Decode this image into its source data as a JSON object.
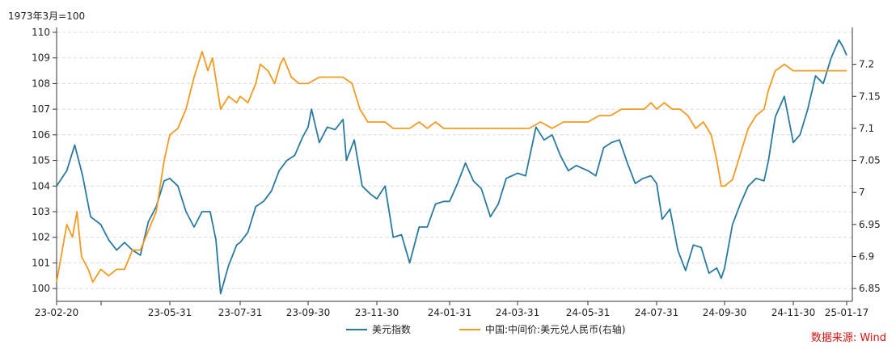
{
  "chart_data": {
    "type": "line",
    "unit_label": "1973年3月=100",
    "source": "数据来源: Wind",
    "x_ticks": [
      "23-02-20",
      "23-05-31",
      "23-07-31",
      "23-09-30",
      "23-11-30",
      "24-01-31",
      "24-03-31",
      "24-05-31",
      "24-07-31",
      "24-09-30",
      "24-11-30",
      "25-01-17"
    ],
    "left_axis": {
      "ylim": [
        99.5,
        110
      ],
      "ticks": [
        100,
        101,
        102,
        103,
        104,
        105,
        106,
        107,
        108,
        109,
        110
      ]
    },
    "right_axis": {
      "ylim": [
        6.83,
        7.25
      ],
      "ticks": [
        6.85,
        6.9,
        6.95,
        7,
        7.05,
        7.1,
        7.15,
        7.2
      ]
    },
    "grid": "horizontal-dashed",
    "legend_position": "bottom-center",
    "series": [
      {
        "name": "美元指数",
        "axis": "left",
        "color": "#2a7aa0",
        "points": [
          [
            "2023-02-20",
            104.0
          ],
          [
            "2023-03-01",
            104.6
          ],
          [
            "2023-03-08",
            105.6
          ],
          [
            "2023-03-15",
            104.4
          ],
          [
            "2023-03-22",
            102.8
          ],
          [
            "2023-03-31",
            102.5
          ],
          [
            "2023-04-07",
            101.9
          ],
          [
            "2023-04-14",
            101.5
          ],
          [
            "2023-04-21",
            101.8
          ],
          [
            "2023-04-28",
            101.5
          ],
          [
            "2023-05-05",
            101.3
          ],
          [
            "2023-05-12",
            102.6
          ],
          [
            "2023-05-19",
            103.2
          ],
          [
            "2023-05-26",
            104.2
          ],
          [
            "2023-05-31",
            104.3
          ],
          [
            "2023-06-07",
            104.0
          ],
          [
            "2023-06-14",
            103.0
          ],
          [
            "2023-06-21",
            102.4
          ],
          [
            "2023-06-28",
            103.0
          ],
          [
            "2023-07-05",
            103.0
          ],
          [
            "2023-07-10",
            101.9
          ],
          [
            "2023-07-14",
            99.8
          ],
          [
            "2023-07-21",
            100.9
          ],
          [
            "2023-07-28",
            101.7
          ],
          [
            "2023-07-31",
            101.8
          ],
          [
            "2023-08-07",
            102.2
          ],
          [
            "2023-08-14",
            103.2
          ],
          [
            "2023-08-21",
            103.4
          ],
          [
            "2023-08-28",
            103.8
          ],
          [
            "2023-09-04",
            104.6
          ],
          [
            "2023-09-11",
            105.0
          ],
          [
            "2023-09-18",
            105.2
          ],
          [
            "2023-09-25",
            105.9
          ],
          [
            "2023-09-30",
            106.3
          ],
          [
            "2023-10-03",
            107.0
          ],
          [
            "2023-10-10",
            105.7
          ],
          [
            "2023-10-17",
            106.3
          ],
          [
            "2023-10-24",
            106.2
          ],
          [
            "2023-10-31",
            106.6
          ],
          [
            "2023-11-03",
            105.0
          ],
          [
            "2023-11-10",
            105.8
          ],
          [
            "2023-11-17",
            104.0
          ],
          [
            "2023-11-24",
            103.7
          ],
          [
            "2023-11-30",
            103.5
          ],
          [
            "2023-12-07",
            104.0
          ],
          [
            "2023-12-14",
            102.0
          ],
          [
            "2023-12-21",
            102.1
          ],
          [
            "2023-12-28",
            101.0
          ],
          [
            "2024-01-05",
            102.4
          ],
          [
            "2024-01-12",
            102.4
          ],
          [
            "2024-01-19",
            103.3
          ],
          [
            "2024-01-26",
            103.4
          ],
          [
            "2024-01-31",
            103.4
          ],
          [
            "2024-02-07",
            104.1
          ],
          [
            "2024-02-14",
            104.9
          ],
          [
            "2024-02-21",
            104.2
          ],
          [
            "2024-02-28",
            103.9
          ],
          [
            "2024-03-07",
            102.8
          ],
          [
            "2024-03-14",
            103.3
          ],
          [
            "2024-03-21",
            104.3
          ],
          [
            "2024-03-31",
            104.5
          ],
          [
            "2024-04-07",
            104.4
          ],
          [
            "2024-04-16",
            106.3
          ],
          [
            "2024-04-23",
            105.8
          ],
          [
            "2024-04-30",
            106.0
          ],
          [
            "2024-05-07",
            105.2
          ],
          [
            "2024-05-14",
            104.6
          ],
          [
            "2024-05-21",
            104.8
          ],
          [
            "2024-05-31",
            104.6
          ],
          [
            "2024-06-07",
            104.4
          ],
          [
            "2024-06-14",
            105.5
          ],
          [
            "2024-06-21",
            105.7
          ],
          [
            "2024-06-28",
            105.8
          ],
          [
            "2024-07-05",
            104.9
          ],
          [
            "2024-07-12",
            104.1
          ],
          [
            "2024-07-19",
            104.3
          ],
          [
            "2024-07-26",
            104.4
          ],
          [
            "2024-07-31",
            104.1
          ],
          [
            "2024-08-05",
            102.7
          ],
          [
            "2024-08-12",
            103.1
          ],
          [
            "2024-08-19",
            101.5
          ],
          [
            "2024-08-26",
            100.7
          ],
          [
            "2024-09-02",
            101.7
          ],
          [
            "2024-09-09",
            101.6
          ],
          [
            "2024-09-16",
            100.6
          ],
          [
            "2024-09-23",
            100.8
          ],
          [
            "2024-09-27",
            100.4
          ],
          [
            "2024-09-30",
            100.8
          ],
          [
            "2024-10-07",
            102.5
          ],
          [
            "2024-10-14",
            103.3
          ],
          [
            "2024-10-21",
            104.0
          ],
          [
            "2024-10-28",
            104.3
          ],
          [
            "2024-11-04",
            104.2
          ],
          [
            "2024-11-08",
            105.0
          ],
          [
            "2024-11-14",
            106.7
          ],
          [
            "2024-11-22",
            107.5
          ],
          [
            "2024-11-30",
            105.7
          ],
          [
            "2024-12-06",
            106.0
          ],
          [
            "2024-12-13",
            107.0
          ],
          [
            "2024-12-20",
            108.3
          ],
          [
            "2024-12-27",
            108.0
          ],
          [
            "2025-01-03",
            109.0
          ],
          [
            "2025-01-10",
            109.7
          ],
          [
            "2025-01-14",
            109.4
          ],
          [
            "2025-01-17",
            109.1
          ]
        ]
      },
      {
        "name": "中国:中间价:美元兑人民币(右轴)",
        "axis": "right",
        "color": "#f39a21",
        "points": [
          [
            "2023-02-20",
            6.86
          ],
          [
            "2023-02-24",
            6.9
          ],
          [
            "2023-03-01",
            6.95
          ],
          [
            "2023-03-06",
            6.93
          ],
          [
            "2023-03-10",
            6.97
          ],
          [
            "2023-03-14",
            6.9
          ],
          [
            "2023-03-20",
            6.88
          ],
          [
            "2023-03-24",
            6.86
          ],
          [
            "2023-03-31",
            6.88
          ],
          [
            "2023-04-07",
            6.87
          ],
          [
            "2023-04-14",
            6.88
          ],
          [
            "2023-04-21",
            6.88
          ],
          [
            "2023-04-28",
            6.91
          ],
          [
            "2023-05-05",
            6.91
          ],
          [
            "2023-05-12",
            6.94
          ],
          [
            "2023-05-19",
            6.97
          ],
          [
            "2023-05-26",
            7.05
          ],
          [
            "2023-05-31",
            7.09
          ],
          [
            "2023-06-07",
            7.1
          ],
          [
            "2023-06-14",
            7.13
          ],
          [
            "2023-06-21",
            7.18
          ],
          [
            "2023-06-28",
            7.22
          ],
          [
            "2023-07-03",
            7.19
          ],
          [
            "2023-07-07",
            7.21
          ],
          [
            "2023-07-14",
            7.13
          ],
          [
            "2023-07-21",
            7.15
          ],
          [
            "2023-07-28",
            7.14
          ],
          [
            "2023-07-31",
            7.15
          ],
          [
            "2023-08-07",
            7.14
          ],
          [
            "2023-08-14",
            7.17
          ],
          [
            "2023-08-18",
            7.2
          ],
          [
            "2023-08-25",
            7.19
          ],
          [
            "2023-08-31",
            7.17
          ],
          [
            "2023-09-05",
            7.2
          ],
          [
            "2023-09-08",
            7.21
          ],
          [
            "2023-09-15",
            7.18
          ],
          [
            "2023-09-22",
            7.17
          ],
          [
            "2023-09-30",
            7.17
          ],
          [
            "2023-10-10",
            7.18
          ],
          [
            "2023-10-20",
            7.18
          ],
          [
            "2023-10-31",
            7.18
          ],
          [
            "2023-11-08",
            7.17
          ],
          [
            "2023-11-15",
            7.13
          ],
          [
            "2023-11-22",
            7.11
          ],
          [
            "2023-11-30",
            7.11
          ],
          [
            "2023-12-07",
            7.11
          ],
          [
            "2023-12-14",
            7.1
          ],
          [
            "2023-12-21",
            7.1
          ],
          [
            "2023-12-28",
            7.1
          ],
          [
            "2024-01-05",
            7.11
          ],
          [
            "2024-01-12",
            7.1
          ],
          [
            "2024-01-19",
            7.11
          ],
          [
            "2024-01-26",
            7.1
          ],
          [
            "2024-01-31",
            7.1
          ],
          [
            "2024-02-07",
            7.1
          ],
          [
            "2024-02-14",
            7.1
          ],
          [
            "2024-02-21",
            7.1
          ],
          [
            "2024-02-28",
            7.1
          ],
          [
            "2024-03-07",
            7.1
          ],
          [
            "2024-03-14",
            7.1
          ],
          [
            "2024-03-21",
            7.1
          ],
          [
            "2024-03-31",
            7.1
          ],
          [
            "2024-04-10",
            7.1
          ],
          [
            "2024-04-20",
            7.11
          ],
          [
            "2024-04-30",
            7.1
          ],
          [
            "2024-05-10",
            7.11
          ],
          [
            "2024-05-20",
            7.11
          ],
          [
            "2024-05-31",
            7.11
          ],
          [
            "2024-06-10",
            7.12
          ],
          [
            "2024-06-20",
            7.12
          ],
          [
            "2024-06-30",
            7.13
          ],
          [
            "2024-07-10",
            7.13
          ],
          [
            "2024-07-20",
            7.13
          ],
          [
            "2024-07-26",
            7.14
          ],
          [
            "2024-07-31",
            7.13
          ],
          [
            "2024-08-07",
            7.14
          ],
          [
            "2024-08-14",
            7.13
          ],
          [
            "2024-08-21",
            7.13
          ],
          [
            "2024-08-28",
            7.12
          ],
          [
            "2024-09-04",
            7.1
          ],
          [
            "2024-09-11",
            7.11
          ],
          [
            "2024-09-18",
            7.09
          ],
          [
            "2024-09-23",
            7.05
          ],
          [
            "2024-09-27",
            7.01
          ],
          [
            "2024-09-30",
            7.01
          ],
          [
            "2024-10-07",
            7.02
          ],
          [
            "2024-10-14",
            7.06
          ],
          [
            "2024-10-21",
            7.1
          ],
          [
            "2024-10-28",
            7.12
          ],
          [
            "2024-11-04",
            7.13
          ],
          [
            "2024-11-08",
            7.16
          ],
          [
            "2024-11-14",
            7.19
          ],
          [
            "2024-11-22",
            7.2
          ],
          [
            "2024-11-30",
            7.19
          ],
          [
            "2024-12-07",
            7.19
          ],
          [
            "2024-12-14",
            7.19
          ],
          [
            "2024-12-21",
            7.19
          ],
          [
            "2024-12-28",
            7.19
          ],
          [
            "2025-01-04",
            7.19
          ],
          [
            "2025-01-10",
            7.19
          ],
          [
            "2025-01-17",
            7.19
          ]
        ]
      }
    ]
  }
}
